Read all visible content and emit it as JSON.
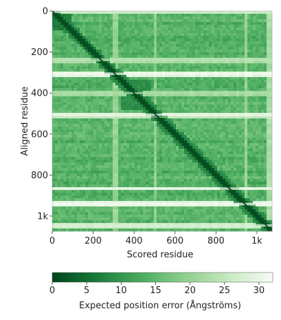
{
  "chart_data": {
    "type": "heatmap",
    "title": "",
    "xlabel": "Scored residue",
    "ylabel": "Aligned residue",
    "n_residues": 1074,
    "xlim": [
      0,
      1074
    ],
    "ylim": [
      0,
      1074
    ],
    "x_ticks": [
      {
        "value": 0,
        "label": "0"
      },
      {
        "value": 200,
        "label": "200"
      },
      {
        "value": 400,
        "label": "400"
      },
      {
        "value": 600,
        "label": "600"
      },
      {
        "value": 800,
        "label": "800"
      },
      {
        "value": 1000,
        "label": "1k"
      }
    ],
    "y_ticks": [
      {
        "value": 0,
        "label": "0"
      },
      {
        "value": 200,
        "label": "200"
      },
      {
        "value": 400,
        "label": "400"
      },
      {
        "value": 600,
        "label": "600"
      },
      {
        "value": 800,
        "label": "800"
      },
      {
        "value": 1000,
        "label": "1k"
      }
    ],
    "colorbar": {
      "label": "Expected position error (Ångströms)",
      "range": [
        0,
        32
      ],
      "ticks": [
        {
          "value": 0,
          "label": "0"
        },
        {
          "value": 5,
          "label": "5"
        },
        {
          "value": 10,
          "label": "10"
        },
        {
          "value": 15,
          "label": "15"
        },
        {
          "value": 20,
          "label": "20"
        },
        {
          "value": 25,
          "label": "25"
        },
        {
          "value": 30,
          "label": "30"
        }
      ],
      "colors": [
        "#00441b",
        "#1a7a3a",
        "#4aab5f",
        "#8ccf8b",
        "#c7e9c0",
        "#f7fcf5"
      ]
    },
    "base_error": 14,
    "diagonal_error": 1,
    "high_error_rows": [
      {
        "start": 0,
        "end": 10,
        "error": 27
      },
      {
        "start": 230,
        "end": 245,
        "error": 24
      },
      {
        "start": 300,
        "end": 312,
        "error": 31
      },
      {
        "start": 395,
        "end": 405,
        "error": 23
      },
      {
        "start": 500,
        "end": 512,
        "error": 30
      },
      {
        "start": 515,
        "end": 520,
        "error": 22
      },
      {
        "start": 860,
        "end": 872,
        "error": 30
      },
      {
        "start": 935,
        "end": 948,
        "error": 31
      },
      {
        "start": 1040,
        "end": 1052,
        "error": 28
      }
    ],
    "high_error_columns": [
      {
        "start": 300,
        "end": 310,
        "error": 22
      },
      {
        "start": 500,
        "end": 510,
        "error": 21
      },
      {
        "start": 940,
        "end": 950,
        "error": 22
      },
      {
        "start": 1060,
        "end": 1074,
        "error": 24
      }
    ],
    "low_error_blocks": [
      {
        "start": 0,
        "end": 100,
        "error": 6
      },
      {
        "start": 330,
        "end": 480,
        "error": 8
      }
    ]
  }
}
